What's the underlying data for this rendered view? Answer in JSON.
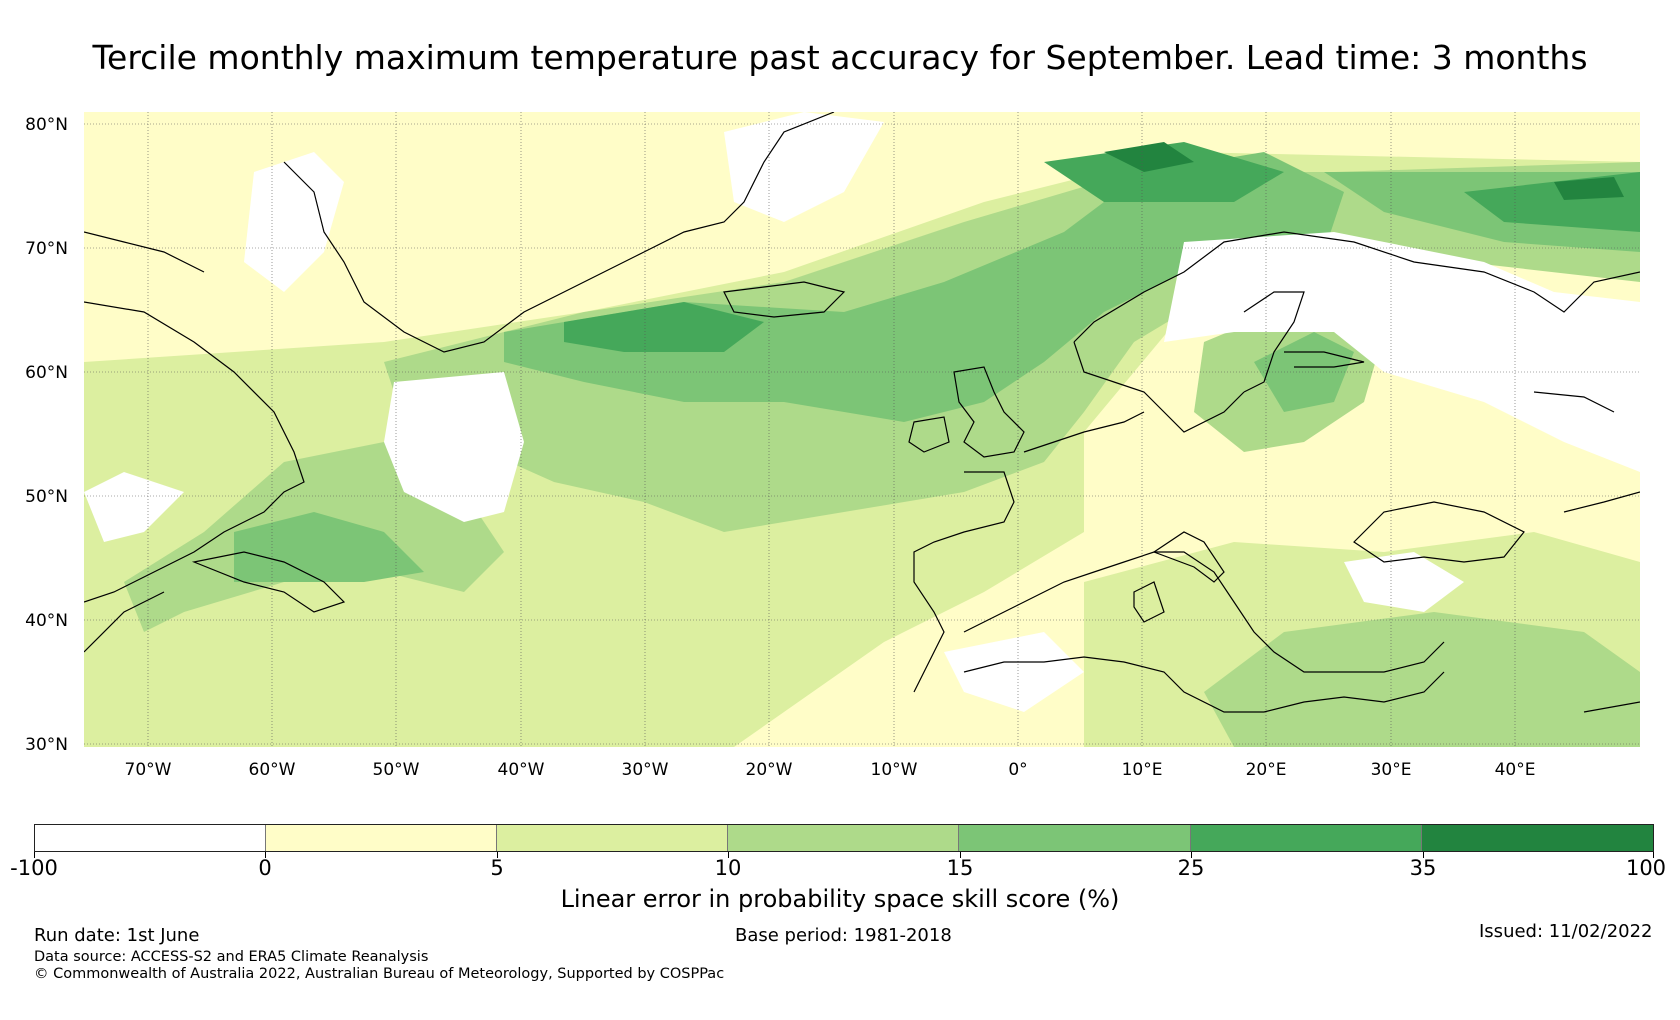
{
  "title": "Tercile monthly maximum temperature past accuracy for September. Lead time: 3 months",
  "map": {
    "region": "North Atlantic and Europe",
    "lat_labels": [
      "80°N",
      "70°N",
      "60°N",
      "50°N",
      "40°N",
      "30°N"
    ],
    "lon_labels": [
      "70°W",
      "60°W",
      "50°W",
      "40°W",
      "30°W",
      "20°W",
      "10°W",
      "0°",
      "10°E",
      "20°E",
      "30°E",
      "40°E"
    ]
  },
  "colorbar": {
    "title": "Linear error in probability space skill score (%)",
    "ticks": [
      "-100",
      "0",
      "5",
      "10",
      "15",
      "25",
      "35",
      "100"
    ],
    "colors": [
      "#ffffff",
      "#fffdc8",
      "#dcefa0",
      "#aeda8a",
      "#7cc576",
      "#45a85a",
      "#22843f"
    ]
  },
  "footer": {
    "run_date": "Run date: 1st June",
    "base_period": "Base period: 1981-2018",
    "issued": "Issued: 11/02/2022",
    "data_source": "Data source: ACCESS-S2 and ERA5 Climate Reanalysis",
    "copyright": "© Commonwealth of Australia 2022, Australian Bureau of Meteorology, Supported by COSPPac"
  }
}
